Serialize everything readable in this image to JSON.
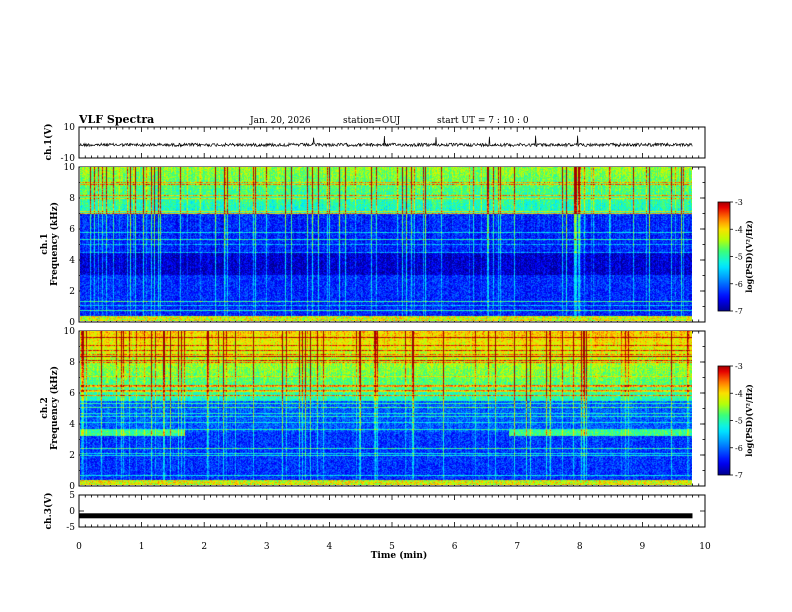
{
  "header": {
    "title": "VLF Spectra",
    "date": "Jan. 20, 2026",
    "station": "station=OUJ",
    "start": "start  UT =   7 : 10 : 0"
  },
  "chart_data": [
    {
      "type": "line",
      "name": "ch1-waveform",
      "ylabel": "ch.1(V)",
      "ylim": [
        -10,
        10
      ],
      "yticks": [
        "10",
        "-10"
      ],
      "baseline": -1.5,
      "xlim": [
        0,
        10
      ]
    },
    {
      "type": "heatmap",
      "name": "ch1-spectrogram",
      "ylabel": "ch.1\nFrequency (kHz)",
      "ylim": [
        0,
        10
      ],
      "yticks": [
        "0",
        "2",
        "4",
        "6",
        "8",
        "10"
      ],
      "xlim": [
        0,
        10
      ],
      "data_end_min": 9.8,
      "colorbar": {
        "label": "log(PSD)(V²/Hz)",
        "range": [
          -7,
          -3
        ],
        "ticks": [
          "-3",
          "-4",
          "-5",
          "-6",
          "-7"
        ]
      }
    },
    {
      "type": "heatmap",
      "name": "ch2-spectrogram",
      "ylabel": "ch.2\nFrequency (kHz)",
      "ylim": [
        0,
        10
      ],
      "yticks": [
        "0",
        "2",
        "4",
        "6",
        "8",
        "10"
      ],
      "xlim": [
        0,
        10
      ],
      "data_end_min": 9.8,
      "colorbar": {
        "label": "log(PSD)(V²/Hz)",
        "range": [
          -7,
          -3
        ],
        "ticks": [
          "-3",
          "-4",
          "-5",
          "-6",
          "-7"
        ]
      }
    },
    {
      "type": "line",
      "name": "ch3-waveform",
      "ylabel": "ch.3(V)",
      "ylim": [
        -5,
        5
      ],
      "yticks": [
        "5",
        "0",
        "-5"
      ],
      "baseline": -1.5,
      "xlim": [
        0,
        10
      ]
    }
  ],
  "xaxis": {
    "label": "Time (min)",
    "ticks": [
      "0",
      "1",
      "2",
      "3",
      "4",
      "5",
      "6",
      "7",
      "8",
      "9",
      "10"
    ]
  }
}
